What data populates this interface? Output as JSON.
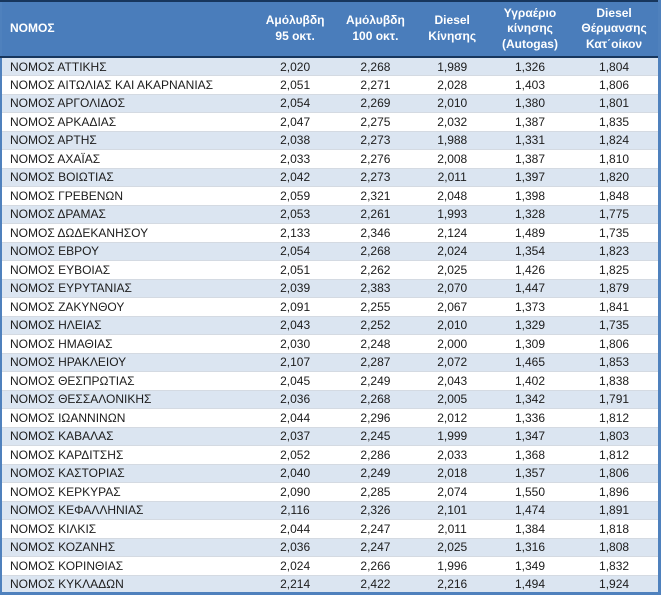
{
  "table": {
    "columns": [
      {
        "label": "ΝΟΜΟΣ",
        "align": "left"
      },
      {
        "label": "Αμόλυβδη\n95 οκτ.",
        "align": "center"
      },
      {
        "label": "Αμόλυβδη\n100 οκτ.",
        "align": "center"
      },
      {
        "label": "Diesel\nΚίνησης",
        "align": "center"
      },
      {
        "label": "Υγραέριο\nκίνησης\n(Autogas)",
        "align": "center"
      },
      {
        "label": "Diesel\nΘέρμανσης\nΚατ΄οίκον",
        "align": "center"
      }
    ],
    "rows": [
      {
        "nomos": "ΝΟΜΟΣ ΑΤΤΙΚΗΣ",
        "values": [
          "2,020",
          "2,268",
          "1,989",
          "1,326",
          "1,804"
        ]
      },
      {
        "nomos": "ΝΟΜΟΣ ΑΙΤΩΛΙΑΣ ΚΑΙ ΑΚΑΡΝΑΝΙΑΣ",
        "values": [
          "2,051",
          "2,271",
          "2,028",
          "1,403",
          "1,806"
        ]
      },
      {
        "nomos": "ΝΟΜΟΣ ΑΡΓΟΛΙΔΟΣ",
        "values": [
          "2,054",
          "2,269",
          "2,010",
          "1,380",
          "1,801"
        ]
      },
      {
        "nomos": "ΝΟΜΟΣ ΑΡΚΑΔΙΑΣ",
        "values": [
          "2,047",
          "2,275",
          "2,032",
          "1,387",
          "1,835"
        ]
      },
      {
        "nomos": "ΝΟΜΟΣ ΑΡΤΗΣ",
        "values": [
          "2,038",
          "2,273",
          "1,988",
          "1,331",
          "1,824"
        ]
      },
      {
        "nomos": "ΝΟΜΟΣ ΑΧΑΪΑΣ",
        "values": [
          "2,033",
          "2,276",
          "2,008",
          "1,387",
          "1,810"
        ]
      },
      {
        "nomos": "ΝΟΜΟΣ ΒΟΙΩΤΙΑΣ",
        "values": [
          "2,042",
          "2,273",
          "2,011",
          "1,397",
          "1,820"
        ]
      },
      {
        "nomos": "ΝΟΜΟΣ ΓΡΕΒΕΝΩΝ",
        "values": [
          "2,059",
          "2,321",
          "2,048",
          "1,398",
          "1,848"
        ]
      },
      {
        "nomos": "ΝΟΜΟΣ ΔΡΑΜΑΣ",
        "values": [
          "2,053",
          "2,261",
          "1,993",
          "1,328",
          "1,775"
        ]
      },
      {
        "nomos": "ΝΟΜΟΣ ΔΩΔΕΚΑΝΗΣΟΥ",
        "values": [
          "2,133",
          "2,346",
          "2,124",
          "1,489",
          "1,735"
        ]
      },
      {
        "nomos": "ΝΟΜΟΣ ΕΒΡΟΥ",
        "values": [
          "2,054",
          "2,268",
          "2,024",
          "1,354",
          "1,823"
        ]
      },
      {
        "nomos": "ΝΟΜΟΣ ΕΥΒΟΙΑΣ",
        "values": [
          "2,051",
          "2,262",
          "2,025",
          "1,426",
          "1,825"
        ]
      },
      {
        "nomos": "ΝΟΜΟΣ ΕΥΡΥΤΑΝΙΑΣ",
        "values": [
          "2,039",
          "2,383",
          "2,070",
          "1,447",
          "1,879"
        ]
      },
      {
        "nomos": "ΝΟΜΟΣ ΖΑΚΥΝΘΟΥ",
        "values": [
          "2,091",
          "2,255",
          "2,067",
          "1,373",
          "1,841"
        ]
      },
      {
        "nomos": "ΝΟΜΟΣ ΗΛΕΙΑΣ",
        "values": [
          "2,043",
          "2,252",
          "2,010",
          "1,329",
          "1,735"
        ]
      },
      {
        "nomos": "ΝΟΜΟΣ ΗΜΑΘΙΑΣ",
        "values": [
          "2,030",
          "2,248",
          "2,000",
          "1,309",
          "1,806"
        ]
      },
      {
        "nomos": "ΝΟΜΟΣ ΗΡΑΚΛΕΙΟΥ",
        "values": [
          "2,107",
          "2,287",
          "2,072",
          "1,465",
          "1,853"
        ]
      },
      {
        "nomos": "ΝΟΜΟΣ ΘΕΣΠΡΩΤΙΑΣ",
        "values": [
          "2,045",
          "2,249",
          "2,043",
          "1,402",
          "1,838"
        ]
      },
      {
        "nomos": "ΝΟΜΟΣ ΘΕΣΣΑΛΟΝΙΚΗΣ",
        "values": [
          "2,036",
          "2,268",
          "2,005",
          "1,342",
          "1,791"
        ]
      },
      {
        "nomos": "ΝΟΜΟΣ ΙΩΑΝΝΙΝΩΝ",
        "values": [
          "2,044",
          "2,296",
          "2,012",
          "1,336",
          "1,812"
        ]
      },
      {
        "nomos": "ΝΟΜΟΣ ΚΑΒΑΛΑΣ",
        "values": [
          "2,037",
          "2,245",
          "1,999",
          "1,347",
          "1,803"
        ]
      },
      {
        "nomos": "ΝΟΜΟΣ ΚΑΡΔΙΤΣΗΣ",
        "values": [
          "2,052",
          "2,286",
          "2,033",
          "1,368",
          "1,812"
        ]
      },
      {
        "nomos": "ΝΟΜΟΣ ΚΑΣΤΟΡΙΑΣ",
        "values": [
          "2,040",
          "2,249",
          "2,018",
          "1,357",
          "1,806"
        ]
      },
      {
        "nomos": "ΝΟΜΟΣ ΚΕΡΚΥΡΑΣ",
        "values": [
          "2,090",
          "2,285",
          "2,074",
          "1,550",
          "1,896"
        ]
      },
      {
        "nomos": "ΝΟΜΟΣ ΚΕΦΑΛΛΗΝΙΑΣ",
        "values": [
          "2,116",
          "2,326",
          "2,101",
          "1,474",
          "1,891"
        ]
      },
      {
        "nomos": "ΝΟΜΟΣ ΚΙΛΚΙΣ",
        "values": [
          "2,044",
          "2,247",
          "2,011",
          "1,384",
          "1,818"
        ]
      },
      {
        "nomos": "ΝΟΜΟΣ ΚΟΖΑΝΗΣ",
        "values": [
          "2,036",
          "2,247",
          "2,025",
          "1,316",
          "1,808"
        ]
      },
      {
        "nomos": "ΝΟΜΟΣ ΚΟΡΙΝΘΙΑΣ",
        "values": [
          "2,024",
          "2,266",
          "1,996",
          "1,349",
          "1,832"
        ]
      },
      {
        "nomos": "ΝΟΜΟΣ ΚΥΚΛΑΔΩΝ",
        "values": [
          "2,214",
          "2,422",
          "2,216",
          "1,494",
          "1,924"
        ]
      }
    ]
  },
  "colors": {
    "header_bg": "#4a7dbb",
    "header_text": "#ffffff",
    "header_border": "#17365d",
    "outer_border": "#4f81bd",
    "row_alt_bg": "#dbe5f1",
    "row_bg": "#ffffff",
    "row_divider": "#d4dae2",
    "body_text": "#1c1c1c"
  }
}
